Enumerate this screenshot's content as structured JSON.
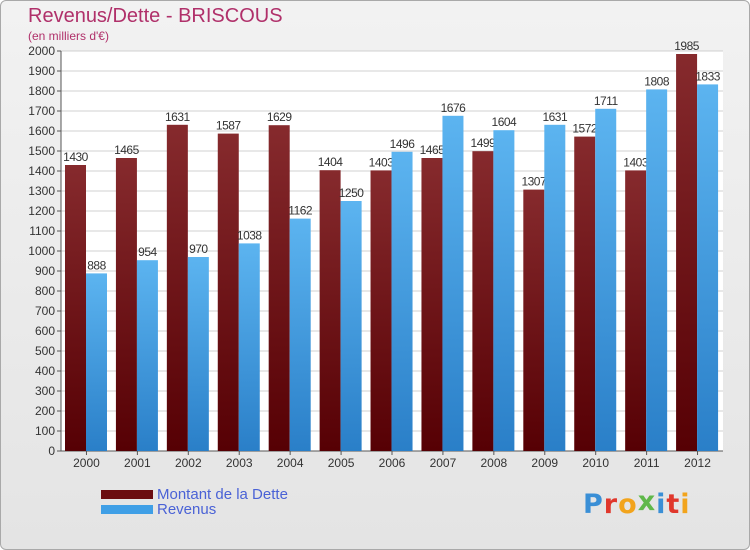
{
  "header": {
    "title": "Revenus/Dette - BRISCOUS",
    "subtitle": "(en milliers d'€)"
  },
  "legend": {
    "items": [
      {
        "label": "Montant de la Dette",
        "color": "#6b0d10"
      },
      {
        "label": "Revenus",
        "color": "#3f9fe6"
      }
    ]
  },
  "logo": {
    "letters": [
      {
        "ch": "P",
        "color": "#3a8fd6"
      },
      {
        "ch": "r",
        "color": "#e0372c"
      },
      {
        "ch": "o",
        "color": "#f2a41c"
      },
      {
        "ch": "x",
        "color": "#5fb84a"
      },
      {
        "ch": "i",
        "color": "#3a8fd6"
      },
      {
        "ch": "t",
        "color": "#e0372c"
      },
      {
        "ch": "i",
        "color": "#f2a41c"
      }
    ]
  },
  "chart_data": {
    "type": "bar",
    "categories": [
      "2000",
      "2001",
      "2002",
      "2003",
      "2004",
      "2005",
      "2006",
      "2007",
      "2008",
      "2009",
      "2010",
      "2011",
      "2012"
    ],
    "series": [
      {
        "name": "Montant de la Dette",
        "color": "#6b0d10",
        "values": [
          1430,
          1465,
          1631,
          1587,
          1629,
          1404,
          1403,
          1465,
          1499,
          1307,
          1572,
          1403,
          1985
        ],
        "labels": [
          "1430",
          "1465",
          "1631",
          "1587",
          "1629",
          "1404",
          "1403",
          "1465",
          "1499",
          "1307",
          "1572",
          "1403",
          "1985"
        ]
      },
      {
        "name": "Revenus",
        "color": "#3f9fe6",
        "values": [
          888,
          954,
          970,
          1038,
          1162,
          1250,
          1496,
          1676,
          1604,
          1631,
          1711,
          1808,
          1833
        ],
        "labels": [
          "888",
          "954",
          "970",
          "1038",
          "1162",
          "1250",
          "1496",
          "1676",
          "1604",
          "1631",
          "1711",
          "1808",
          "1833"
        ]
      }
    ],
    "ylim": [
      0,
      2000
    ],
    "ytick_step": 100,
    "grid": true
  }
}
